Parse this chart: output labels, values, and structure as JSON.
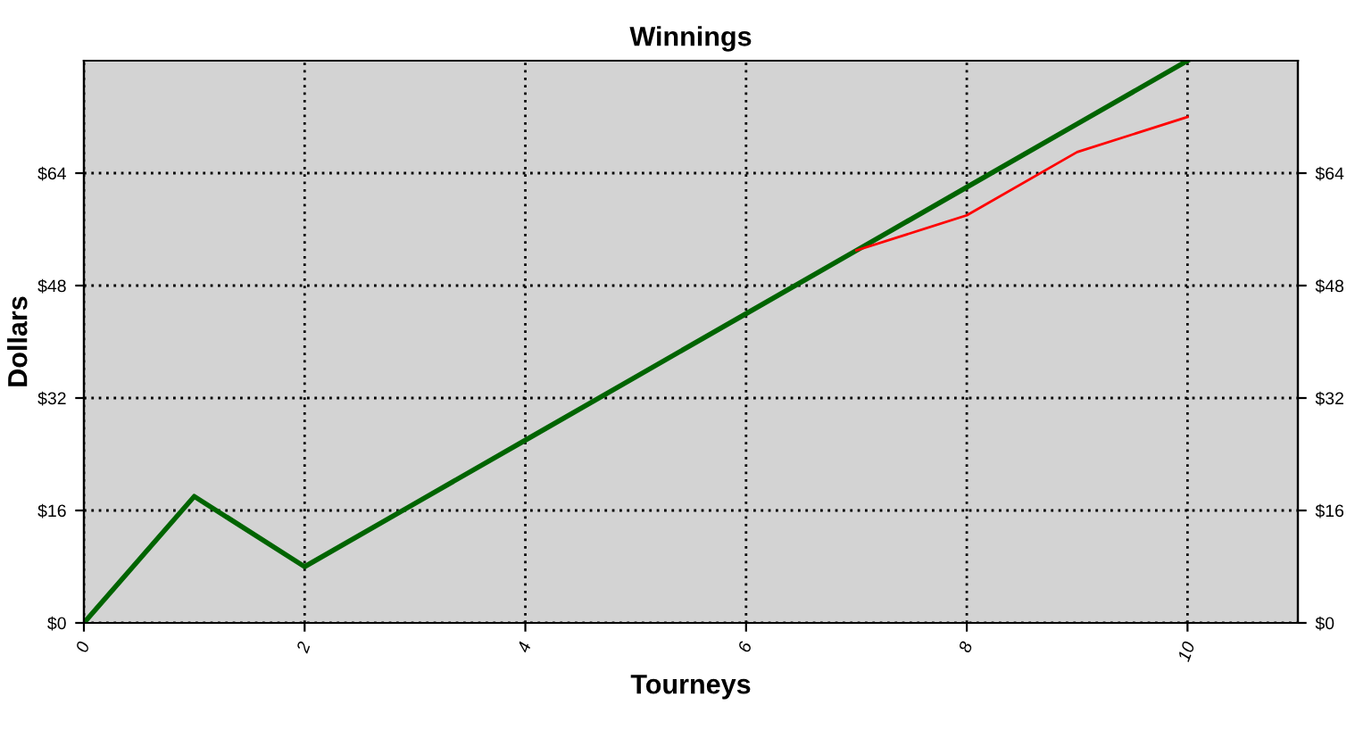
{
  "chart_data": {
    "type": "line",
    "title": "Winnings",
    "xlabel": "Tourneys",
    "ylabel": "Dollars",
    "x": [
      0,
      1,
      2,
      3,
      4,
      5,
      6,
      7,
      8,
      9,
      10
    ],
    "series": [
      {
        "color": "#006400",
        "values": [
          0,
          18,
          8,
          17,
          26,
          35,
          44,
          53,
          62,
          71,
          80
        ]
      },
      {
        "color": "#ff0000",
        "values": [
          null,
          null,
          null,
          null,
          null,
          null,
          null,
          53,
          58,
          67,
          72
        ]
      }
    ],
    "xlim": [
      0,
      11
    ],
    "xticks": [
      0,
      2,
      4,
      6,
      8,
      10
    ],
    "ylim": [
      0,
      80
    ],
    "yticks": [
      {
        "value": 0,
        "label": "$0"
      },
      {
        "value": 16,
        "label": "$16"
      },
      {
        "value": 32,
        "label": "$32"
      },
      {
        "value": 48,
        "label": "$48"
      },
      {
        "value": 64,
        "label": "$64"
      }
    ],
    "y2lim": [
      0,
      80
    ],
    "y2ticks": [
      {
        "value": 0,
        "label": "$0"
      },
      {
        "value": 16,
        "label": "$16"
      },
      {
        "value": 32,
        "label": "$32"
      },
      {
        "value": 48,
        "label": "$48"
      },
      {
        "value": 64,
        "label": "$64"
      }
    ],
    "grid": true,
    "marker": "none",
    "line_style": "solid"
  }
}
